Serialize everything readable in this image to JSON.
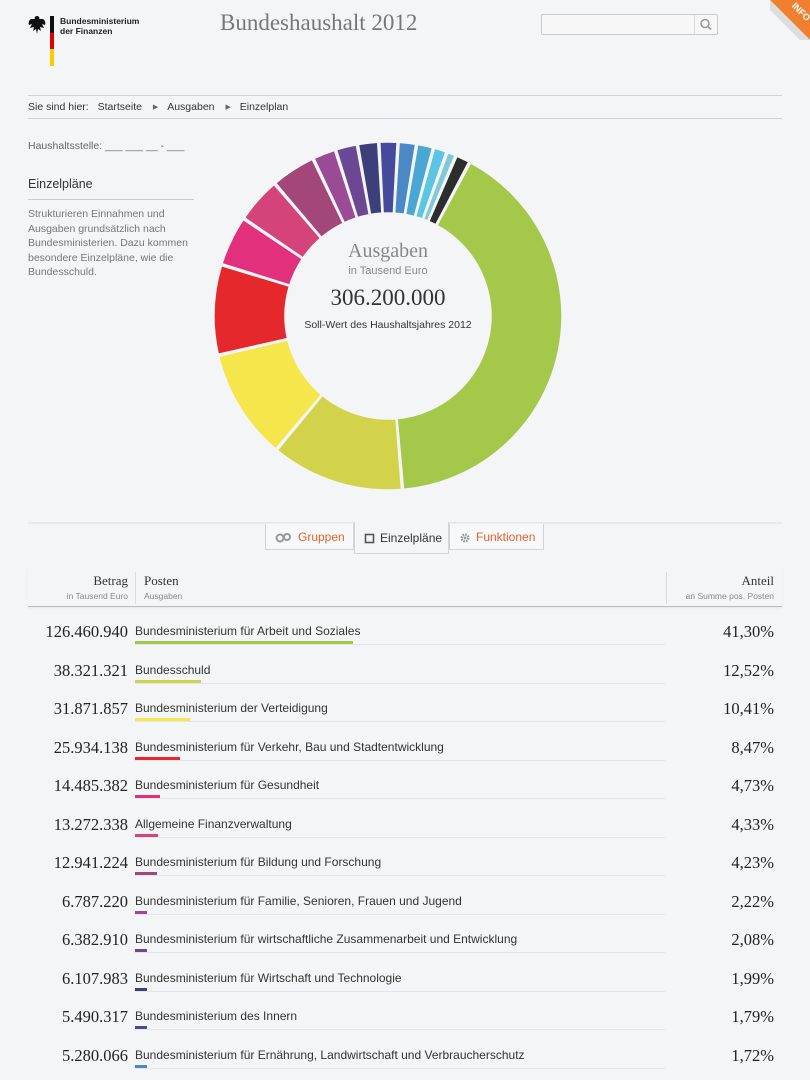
{
  "header": {
    "logo_text_line1": "Bundesministerium",
    "logo_text_line2": "der Finanzen",
    "title": "Bundeshaushalt 2012",
    "search_placeholder": "",
    "info_label": "INFO"
  },
  "breadcrumb": {
    "prefix": "Sie sind hier:",
    "items": [
      "Startseite",
      "Ausgaben",
      "Einzelplan"
    ]
  },
  "haushaltsstelle": "Haushaltsstelle: ___ ___ __ - ___",
  "sidebar": {
    "title": "Einzelpläne",
    "text": "Strukturieren Einnahmen und Ausgaben grundsätzlich nach Bundesministerien. Dazu kommen besondere Einzelpläne, wie die Bundesschuld."
  },
  "chart_center": {
    "title": "Ausgaben",
    "unit": "in Tausend Euro",
    "total": "306.200.000",
    "caption": "Soll-Wert des Haushaltsjahres 2012"
  },
  "tabs": [
    {
      "label": "Gruppen",
      "icon": "groups-icon"
    },
    {
      "label": "Einzelpläne",
      "icon": "square-icon"
    },
    {
      "label": "Funktionen",
      "icon": "gear-icon"
    }
  ],
  "table": {
    "col_betrag": "Betrag",
    "col_betrag_sub": "in Tausend Euro",
    "col_posten": "Posten",
    "col_posten_sub": "Ausgaben",
    "col_anteil": "Anteil",
    "col_anteil_sub": "an Summe pos. Posten",
    "rows": [
      {
        "amount": "126.460.940",
        "name": "Bundesministerium für Arbeit und Soziales",
        "share": "41,30%",
        "value": 41.3,
        "color": "#a5c84b"
      },
      {
        "amount": "38.321.321",
        "name": "Bundesschuld",
        "share": "12,52%",
        "value": 12.52,
        "color": "#d3d24b"
      },
      {
        "amount": "31.871.857",
        "name": "Bundesministerium der Verteidigung",
        "share": "10,41%",
        "value": 10.41,
        "color": "#f5e64b"
      },
      {
        "amount": "25.934.138",
        "name": "Bundesministerium für Verkehr, Bau und Stadtentwicklung",
        "share": "8,47%",
        "value": 8.47,
        "color": "#e5282c"
      },
      {
        "amount": "14.485.382",
        "name": "Bundesministerium für Gesundheit",
        "share": "4,73%",
        "value": 4.73,
        "color": "#e3307c"
      },
      {
        "amount": "13.272.338",
        "name": "Allgemeine Finanzverwaltung",
        "share": "4,33%",
        "value": 4.33,
        "color": "#d4447a"
      },
      {
        "amount": "12.941.224",
        "name": "Bundesministerium für Bildung und Forschung",
        "share": "4,23%",
        "value": 4.23,
        "color": "#a3467a"
      },
      {
        "amount": "6.787.220",
        "name": "Bundesministerium für Familie, Senioren, Frauen und Jugend",
        "share": "2,22%",
        "value": 2.22,
        "color": "#9b4a96"
      },
      {
        "amount": "6.382.910",
        "name": "Bundesministerium für wirtschaftliche Zusammenarbeit und Entwicklung",
        "share": "2,08%",
        "value": 2.08,
        "color": "#6b4794"
      },
      {
        "amount": "6.107.983",
        "name": "Bundesministerium für Wirtschaft und Technologie",
        "share": "1,99%",
        "value": 1.99,
        "color": "#3d3f7a"
      },
      {
        "amount": "5.490.317",
        "name": "Bundesministerium des Innern",
        "share": "1,79%",
        "value": 1.79,
        "color": "#454a9c"
      },
      {
        "amount": "5.280.066",
        "name": "Bundesministerium für Ernährung, Landwirtschaft und Verbraucherschutz",
        "share": "1,72%",
        "value": 1.72,
        "color": "#4b88c6"
      }
    ]
  },
  "chart_data": {
    "type": "pie",
    "title": "Ausgaben",
    "unit": "in Tausend Euro",
    "total": 306200000,
    "slices": [
      {
        "label": "Bundesministerium für Arbeit und Soziales",
        "value": 41.3,
        "color": "#a5c84b"
      },
      {
        "label": "Bundesschuld",
        "value": 12.52,
        "color": "#d3d24b"
      },
      {
        "label": "Bundesministerium der Verteidigung",
        "value": 10.41,
        "color": "#f5e64b"
      },
      {
        "label": "Bundesministerium für Verkehr, Bau und Stadtentwicklung",
        "value": 8.47,
        "color": "#e5282c"
      },
      {
        "label": "Bundesministerium für Gesundheit",
        "value": 4.73,
        "color": "#e3307c"
      },
      {
        "label": "Allgemeine Finanzverwaltung",
        "value": 4.33,
        "color": "#d4447a"
      },
      {
        "label": "Bundesministerium für Bildung und Forschung",
        "value": 4.23,
        "color": "#a3467a"
      },
      {
        "label": "Bundesministerium für Familie, Senioren, Frauen und Jugend",
        "value": 2.22,
        "color": "#9b4a96"
      },
      {
        "label": "Bundesministerium für wirtschaftliche Zusammenarbeit und Entwicklung",
        "value": 2.08,
        "color": "#6b4794"
      },
      {
        "label": "Bundesministerium für Wirtschaft und Technologie",
        "value": 1.99,
        "color": "#3d3f7a"
      },
      {
        "label": "Bundesministerium des Innern",
        "value": 1.79,
        "color": "#454a9c"
      },
      {
        "label": "Bundesministerium für Ernährung, Landwirtschaft und Verbraucherschutz",
        "value": 1.72,
        "color": "#4b88c6"
      },
      {
        "label": "",
        "value": 1.6,
        "color": "#4aa7d4"
      },
      {
        "label": "",
        "value": 1.3,
        "color": "#5bc5e3"
      },
      {
        "label": "",
        "value": 0.9,
        "color": "#7fcad6"
      },
      {
        "label": "",
        "value": 1.4,
        "color": "#2d2d2d"
      }
    ]
  }
}
